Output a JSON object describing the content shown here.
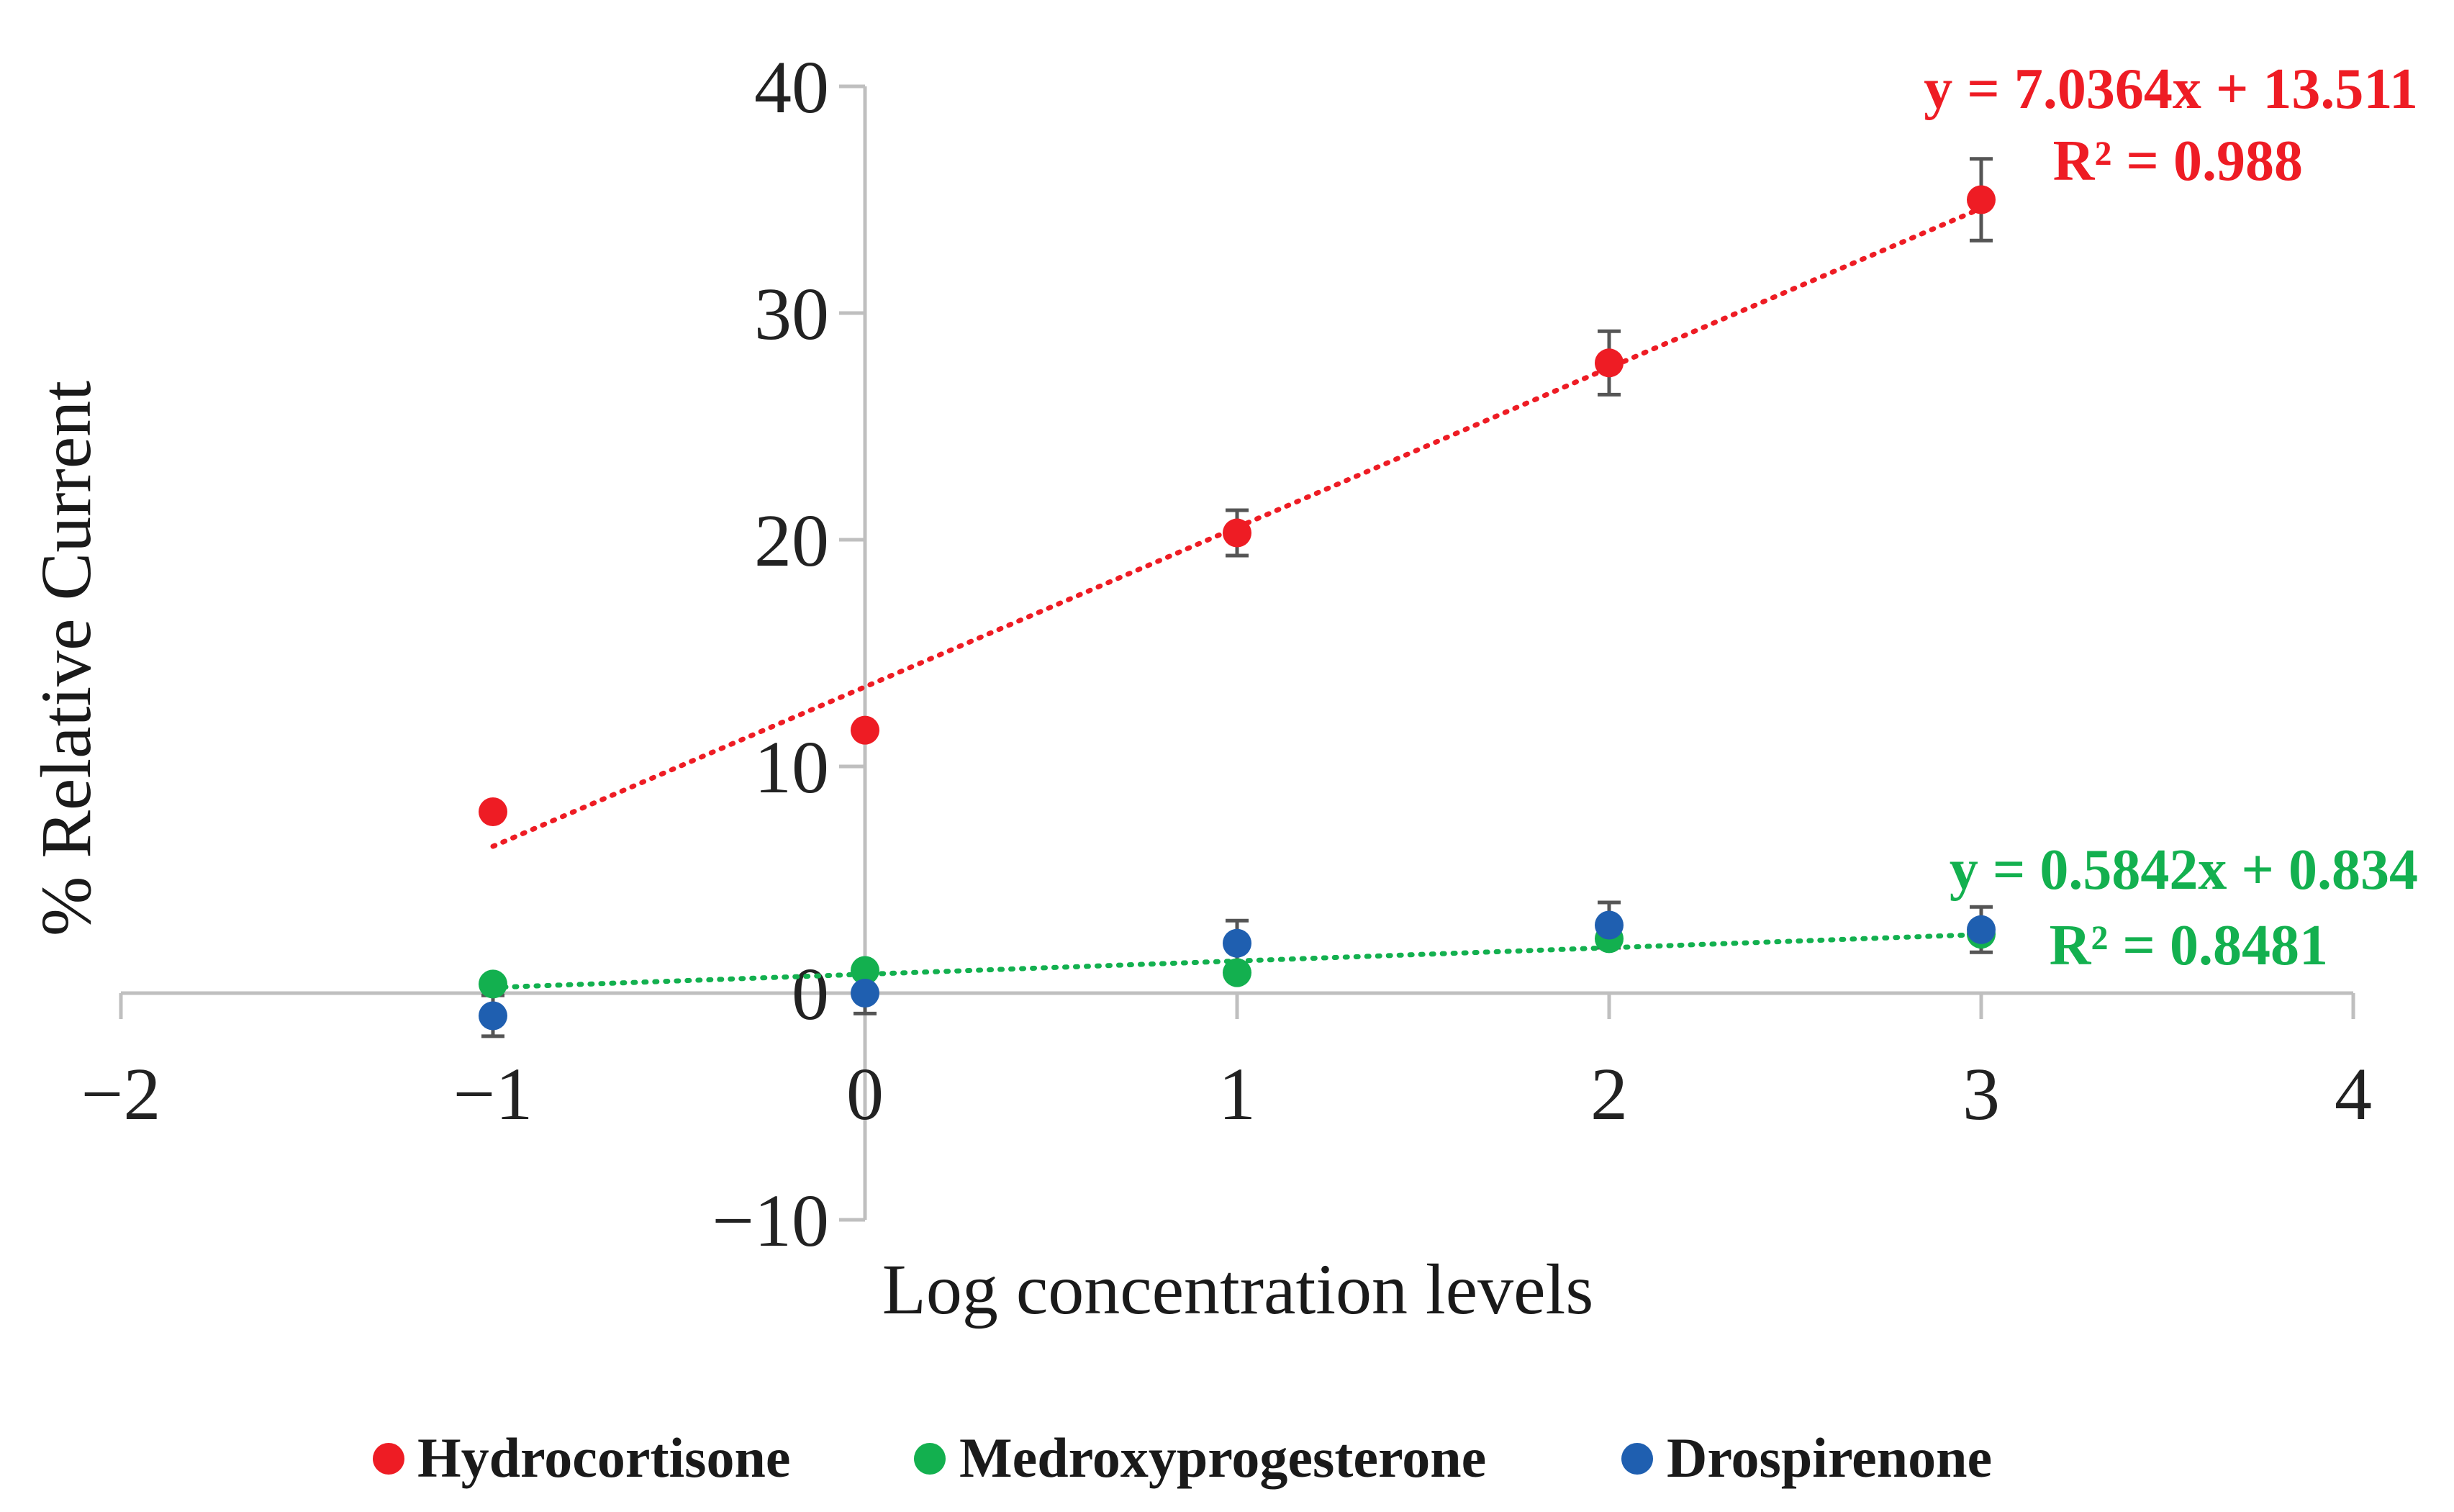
{
  "chart_data": {
    "type": "scatter",
    "title": "",
    "xlabel": "Log concentration levels",
    "ylabel": "% Relative Current",
    "xlim": [
      -2,
      4
    ],
    "ylim": [
      -10,
      40
    ],
    "xticks": [
      -2,
      -1,
      0,
      1,
      2,
      3,
      4
    ],
    "yticks": [
      -10,
      0,
      10,
      20,
      30,
      40
    ],
    "xtick_labels": [
      "−2",
      "−1",
      "0",
      "1",
      "2",
      "3",
      "4"
    ],
    "ytick_labels": [
      "−10",
      "0",
      "10",
      "20",
      "30",
      "40"
    ],
    "grid": false,
    "legend_position": "bottom",
    "series": [
      {
        "name": "Hydrocortisone",
        "color": "#ee1c24",
        "x": [
          -1,
          0,
          1,
          2,
          3
        ],
        "y": [
          8.0,
          11.6,
          20.3,
          27.8,
          35.0
        ],
        "error": [
          0,
          0,
          1.0,
          1.4,
          1.8
        ],
        "trendline": {
          "slope": 7.0364,
          "intercept": 13.511,
          "x_range": [
            -1,
            3
          ],
          "equation": "y = 7.0364x + 13.511",
          "r2": "R² = 0.988"
        }
      },
      {
        "name": "Medroxyprogesterone",
        "color": "#13b04f",
        "x": [
          -1,
          0,
          1,
          2,
          3
        ],
        "y": [
          0.4,
          1.0,
          0.9,
          2.4,
          2.6
        ],
        "error": [
          0,
          0,
          0,
          0,
          0
        ],
        "trendline": {
          "slope": 0.5842,
          "intercept": 0.834,
          "x_range": [
            -1,
            3
          ],
          "equation": "y = 0.5842x + 0.834",
          "r2": "R² = 0.8481"
        }
      },
      {
        "name": "Drospirenone",
        "color": "#1f5fb0",
        "x": [
          -1,
          0,
          1,
          2,
          3
        ],
        "y": [
          -1.0,
          0.0,
          2.2,
          3.0,
          2.8
        ],
        "error": [
          0.9,
          0.9,
          1.0,
          1.0,
          1.0
        ]
      }
    ]
  }
}
